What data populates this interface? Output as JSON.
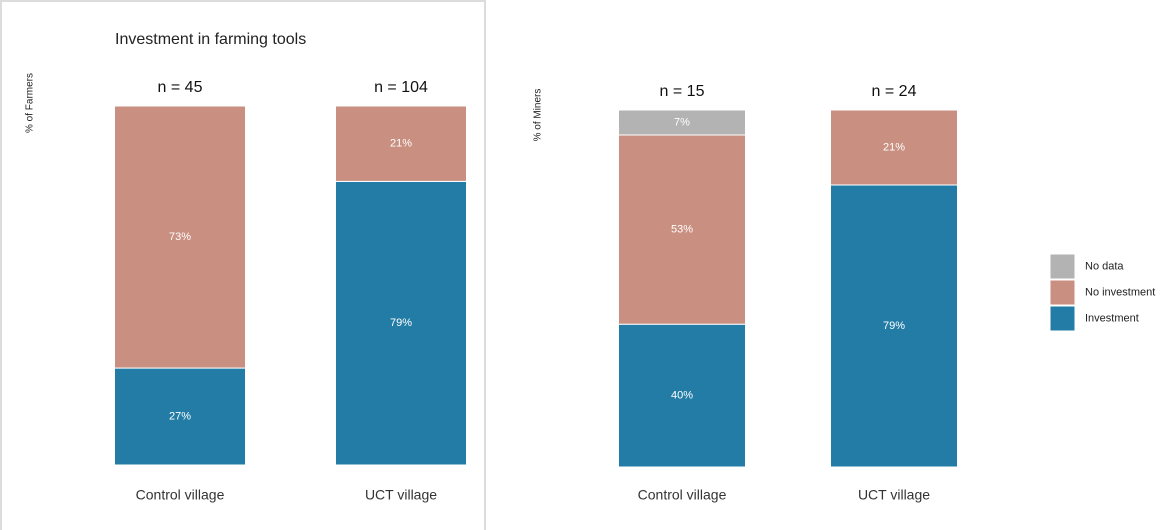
{
  "chart_data": [
    {
      "type": "stacked_bar",
      "title": "Investment in farming tools",
      "ylabel": "% of Farmers",
      "categories": [
        "Control village",
        "UCT village"
      ],
      "annotations": [
        "n = 45",
        "n = 104"
      ],
      "ylim": [
        0,
        100
      ],
      "series": [
        {
          "color": "#227ca5",
          "values": [
            27,
            79
          ],
          "value_labels": [
            "27%",
            "79%"
          ]
        },
        {
          "color": "#c98f80",
          "values": [
            73,
            21
          ],
          "value_labels": [
            "73%",
            "21%"
          ]
        }
      ]
    },
    {
      "type": "stacked_bar",
      "ylabel": "% of Miners",
      "categories": [
        "Control village",
        "UCT village"
      ],
      "annotations": [
        "n = 15",
        "n = 24"
      ],
      "ylim": [
        0,
        100
      ],
      "series": [
        {
          "name": "Investment",
          "color": "#227ca5",
          "values": [
            40,
            79
          ],
          "value_labels": [
            "40%",
            "79%"
          ]
        },
        {
          "name": "No investment",
          "color": "#c98f80",
          "values": [
            53,
            21
          ],
          "value_labels": [
            "53%",
            "21%"
          ]
        },
        {
          "name": "No data",
          "color": "#b3b3b3",
          "values": [
            7,
            null
          ],
          "value_labels": [
            "7%",
            null
          ]
        }
      ]
    }
  ]
}
